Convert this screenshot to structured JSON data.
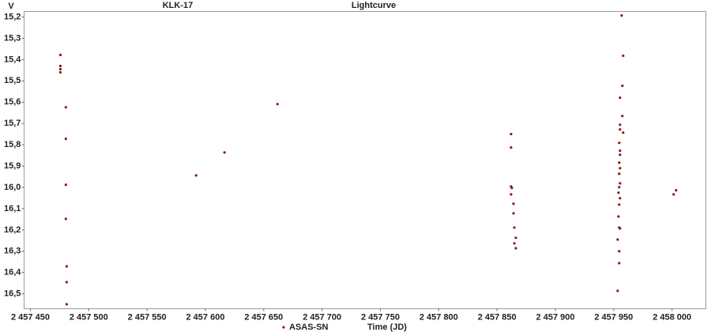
{
  "chart_data": {
    "type": "scatter",
    "title": "Lightcurve",
    "object_label": "KLK-17",
    "y_label": "V",
    "x_label": "Time (JD)",
    "y_reversed": true,
    "xlim": [
      2457444.6,
      2458029
    ],
    "ylim": [
      15.174,
      16.57
    ],
    "xticks": [
      {
        "value": 2457450,
        "label": "2 457 450"
      },
      {
        "value": 2457500,
        "label": "2 457 500"
      },
      {
        "value": 2457550,
        "label": "2 457 550"
      },
      {
        "value": 2457600,
        "label": "2 457 600"
      },
      {
        "value": 2457650,
        "label": "2 457 650"
      },
      {
        "value": 2457700,
        "label": "2 457 700"
      },
      {
        "value": 2457750,
        "label": "2 457 750"
      },
      {
        "value": 2457800,
        "label": "2 457 800"
      },
      {
        "value": 2457850,
        "label": "2 457 850"
      },
      {
        "value": 2457900,
        "label": "2 457 900"
      },
      {
        "value": 2457950,
        "label": "2 457 950"
      },
      {
        "value": 2458000,
        "label": "2 458 000"
      }
    ],
    "yticks": [
      {
        "value": 15.2,
        "label": "15,2"
      },
      {
        "value": 15.3,
        "label": "15,3"
      },
      {
        "value": 15.4,
        "label": "15,4"
      },
      {
        "value": 15.5,
        "label": "15,5"
      },
      {
        "value": 15.6,
        "label": "15,6"
      },
      {
        "value": 15.7,
        "label": "15,7"
      },
      {
        "value": 15.8,
        "label": "15,8"
      },
      {
        "value": 15.9,
        "label": "15,9"
      },
      {
        "value": 16.0,
        "label": "16,0"
      },
      {
        "value": 16.1,
        "label": "16,1"
      },
      {
        "value": 16.2,
        "label": "16,2"
      },
      {
        "value": 16.3,
        "label": "16,3"
      },
      {
        "value": 16.4,
        "label": "16,4"
      },
      {
        "value": 16.5,
        "label": "16,5"
      }
    ],
    "series": [
      {
        "name": "ASAS-SN",
        "color": "#8b1a1a",
        "x": [
          2457475.7,
          2457475.7,
          2457475.7,
          2457475.7,
          2457480.4,
          2457480.4,
          2457480.4,
          2457480.4,
          2457481.1,
          2457481.1,
          2457481.1,
          2457592.1,
          2457616.4,
          2457661.8,
          2457862.0,
          2457862.0,
          2457862.0,
          2457862.7,
          2457862.0,
          2457864.1,
          2457864.1,
          2457864.8,
          2457866.1,
          2457864.8,
          2457866.1,
          2457956.8,
          2457958.1,
          2457957.4,
          2457955.4,
          2457957.4,
          2457955.4,
          2457955.4,
          2457958.1,
          2457954.7,
          2457955.4,
          2457955.4,
          2457954.7,
          2457955.4,
          2457954.7,
          2457955.4,
          2457954.7,
          2457954.1,
          2457955.4,
          2457954.7,
          2457954.1,
          2457954.7,
          2457955.4,
          2457953.4,
          2457954.7,
          2457954.7,
          2457953.4,
          2458003.5,
          2458001.4
        ],
        "values": [
          15.378,
          15.43,
          15.445,
          15.46,
          15.624,
          15.772,
          15.988,
          16.148,
          16.371,
          16.445,
          16.549,
          15.944,
          15.836,
          15.609,
          15.75,
          15.813,
          15.996,
          16.003,
          16.033,
          16.077,
          16.122,
          16.189,
          16.237,
          16.263,
          16.286,
          15.193,
          15.382,
          15.523,
          15.579,
          15.665,
          15.706,
          15.728,
          15.743,
          15.791,
          15.828,
          15.847,
          15.884,
          15.91,
          15.936,
          15.981,
          15.999,
          16.025,
          16.051,
          16.081,
          16.137,
          16.189,
          16.193,
          16.245,
          16.3,
          16.356,
          16.486,
          16.014,
          16.033
        ]
      }
    ]
  }
}
